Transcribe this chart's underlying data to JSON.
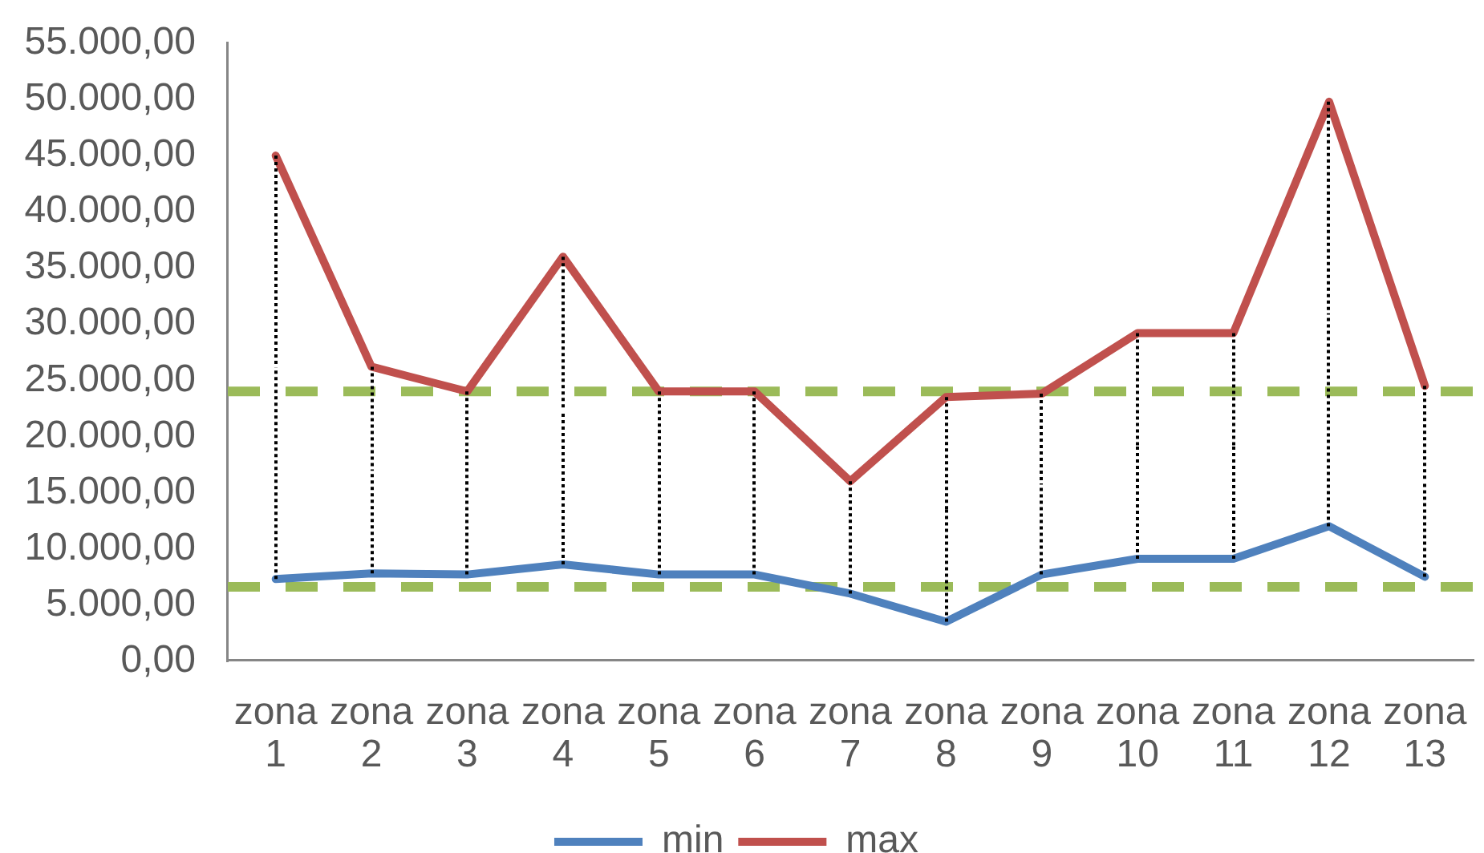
{
  "chart_data": {
    "type": "line",
    "categories": [
      "zona 1",
      "zona 2",
      "zona 3",
      "zona 4",
      "zona 5",
      "zona 6",
      "zona 7",
      "zona 8",
      "zona 9",
      "zona 10",
      "zona 11",
      "zona 12",
      "zona 13"
    ],
    "series": [
      {
        "name": "min",
        "color": "#4f81bd",
        "values": [
          7300,
          7800,
          7700,
          8600,
          7700,
          7700,
          6000,
          3500,
          7700,
          9100,
          9100,
          12000,
          7500
        ]
      },
      {
        "name": "max",
        "color": "#c0504d",
        "values": [
          45000,
          26200,
          24000,
          36000,
          24000,
          24000,
          16000,
          23500,
          23800,
          29200,
          29200,
          49800,
          24500
        ],
        "errors": [
          [
            7300,
            45000
          ],
          [
            7800,
            26200
          ],
          [
            7700,
            24000
          ],
          [
            8600,
            36000
          ],
          [
            7700,
            24000
          ],
          [
            7700,
            24000
          ],
          [
            6000,
            16000
          ],
          [
            3500,
            23500
          ],
          [
            7700,
            23800
          ],
          [
            9100,
            29200
          ],
          [
            9100,
            29200
          ],
          [
            12000,
            49800
          ],
          [
            7500,
            24500
          ]
        ]
      }
    ],
    "ylim": [
      0,
      55000
    ],
    "yticks": [
      {
        "value": 0,
        "label": "0,00"
      },
      {
        "value": 5000,
        "label": "5.000,00"
      },
      {
        "value": 10000,
        "label": "10.000,00"
      },
      {
        "value": 15000,
        "label": "15.000,00"
      },
      {
        "value": 20000,
        "label": "20.000,00"
      },
      {
        "value": 25000,
        "label": "25.000,00"
      },
      {
        "value": 30000,
        "label": "30.000,00"
      },
      {
        "value": 35000,
        "label": "35.000,00"
      },
      {
        "value": 40000,
        "label": "40.000,00"
      },
      {
        "value": 45000,
        "label": "45.000,00"
      },
      {
        "value": 50000,
        "label": "50.000,00"
      },
      {
        "value": 55000,
        "label": "55.000,00"
      }
    ],
    "ref_lines": [
      {
        "axis": "y",
        "value": 24000,
        "color": "#9bbb59",
        "line_style": "dashed"
      },
      {
        "axis": "y",
        "value": 6600,
        "color": "#9bbb59",
        "line_style": "dashed"
      }
    ],
    "legend": "bottom",
    "grid": false,
    "marker": "none"
  }
}
